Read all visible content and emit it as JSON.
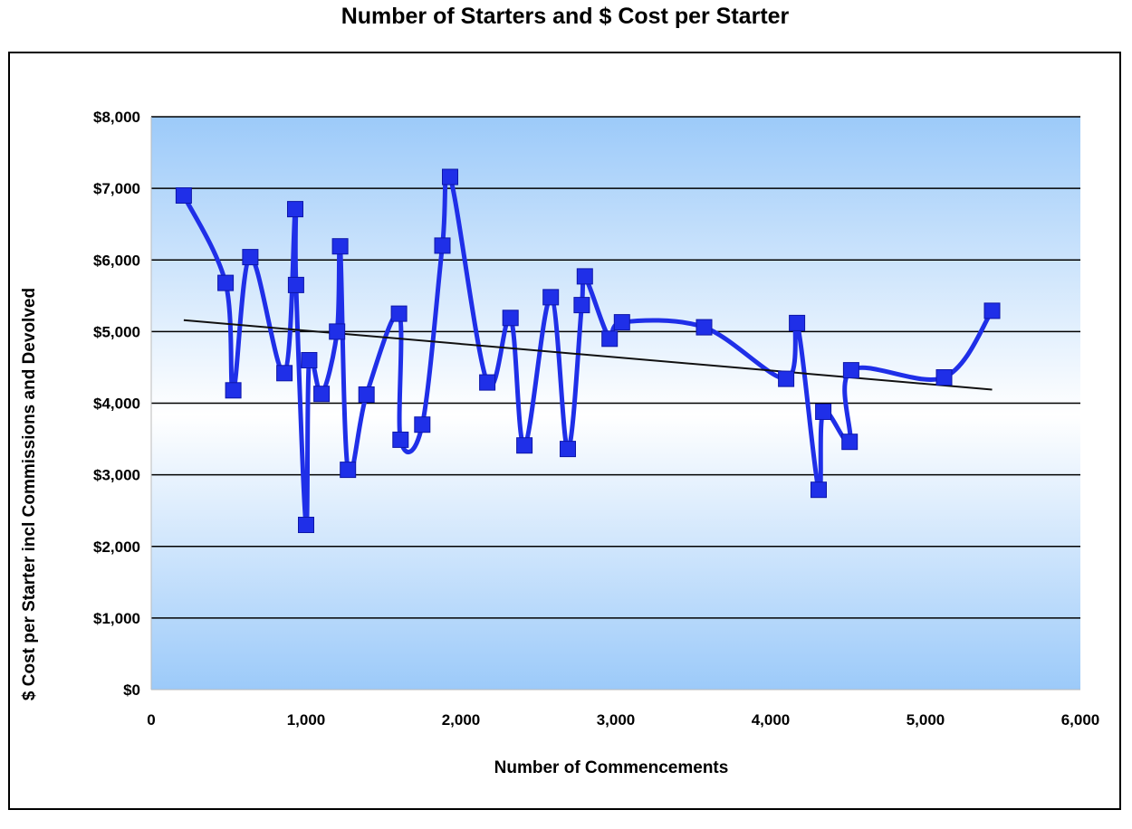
{
  "chart_data": {
    "type": "line",
    "title": "Number of Starters and $ Cost per Starter",
    "xlabel": "Number of Commencements",
    "ylabel": "$ Cost per Starter incl Commissions and Devolved",
    "xlim": [
      0,
      6000
    ],
    "ylim": [
      0,
      8000
    ],
    "x_ticks": [
      "0",
      "1,000",
      "2,000",
      "3,000",
      "4,000",
      "5,000",
      "6,000"
    ],
    "y_ticks": [
      "$0",
      "$1,000",
      "$2,000",
      "$3,000",
      "$4,000",
      "$5,000",
      "$6,000",
      "$7,000",
      "$8,000"
    ],
    "grid": true,
    "legend": "none",
    "colors": {
      "series": "#1f2fe8",
      "marker": "#1f2fe8",
      "trend": "#111111",
      "plot_edge": "#9ccaf9",
      "plot_center": "#ffffff"
    },
    "series": [
      {
        "x": [
          210,
          480,
          530,
          640,
          860,
          930,
          935,
          1000,
          1020,
          1100,
          1200,
          1220,
          1270,
          1390,
          1600,
          1610,
          1750,
          1880,
          1930,
          2170,
          2320,
          2410,
          2580,
          2690,
          2780,
          2800,
          2960,
          3040,
          3570,
          4100,
          4170,
          4310,
          4340,
          4510,
          4520,
          5120,
          5430
        ],
        "y": [
          6900,
          5680,
          4180,
          6040,
          4420,
          6710,
          5650,
          2300,
          4600,
          4130,
          5000,
          6190,
          3070,
          4120,
          5250,
          3490,
          3700,
          6200,
          7160,
          4290,
          5190,
          3410,
          5480,
          3360,
          5370,
          5770,
          4900,
          5130,
          5060,
          4340,
          5120,
          2790,
          3880,
          3460,
          4460,
          4360,
          5290
        ]
      }
    ],
    "trendline": {
      "x": [
        210,
        5430
      ],
      "y": [
        5160,
        4190
      ]
    }
  }
}
